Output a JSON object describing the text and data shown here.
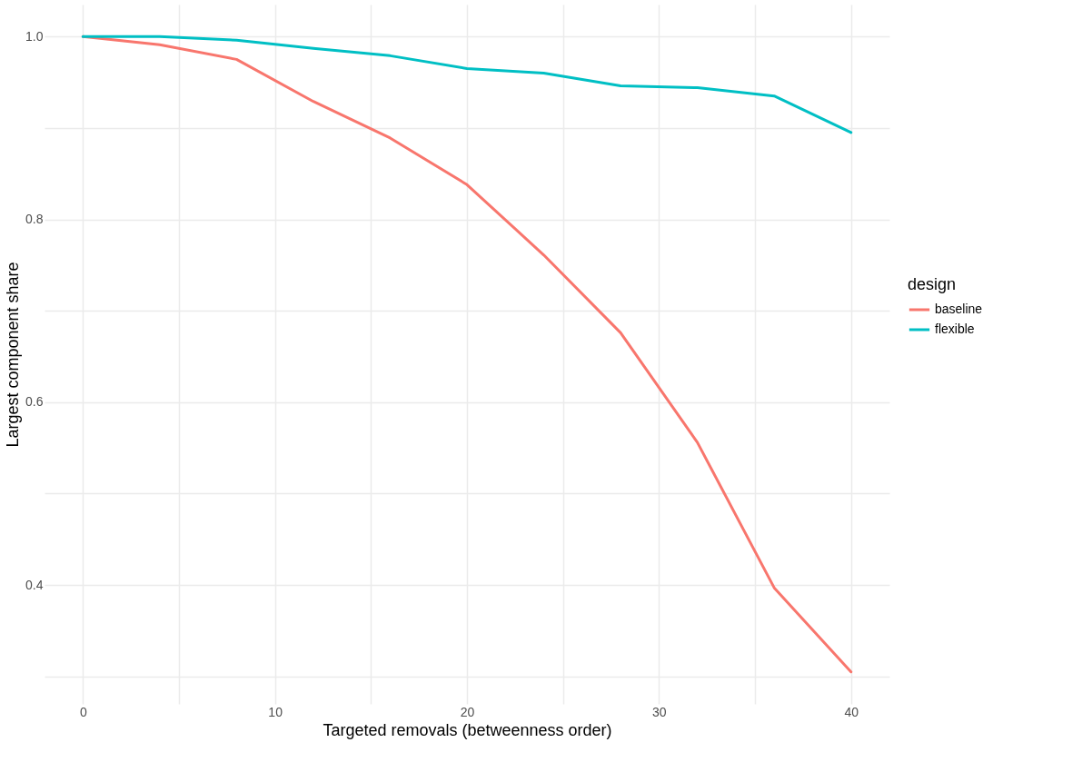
{
  "chart_data": {
    "type": "line",
    "xlabel": "Targeted removals (betweenness order)",
    "ylabel": "Largest component share",
    "legend_title": "design",
    "legend": "right",
    "grid": true,
    "line_style": "solid",
    "marker": "none",
    "x": [
      0,
      4,
      8,
      12,
      16,
      20,
      24,
      28,
      32,
      36,
      40
    ],
    "series": [
      {
        "name": "baseline",
        "color": "#f8766d",
        "values": [
          1.0,
          0.991,
          0.975,
          0.929,
          0.889,
          0.838,
          0.761,
          0.676,
          0.556,
          0.397,
          0.305
        ]
      },
      {
        "name": "flexible",
        "color": "#00bfc4",
        "values": [
          1.0,
          1.0,
          0.996,
          0.987,
          0.979,
          0.965,
          0.96,
          0.946,
          0.944,
          0.935,
          0.895
        ]
      }
    ],
    "xlim": [
      -2,
      42
    ],
    "xticks": [
      0,
      {
        "value": 5,
        "label": null
      },
      10,
      {
        "value": 15,
        "label": null
      },
      20,
      {
        "value": 25,
        "label": null
      },
      30,
      {
        "value": 35,
        "label": null
      },
      40
    ],
    "ylim": [
      0.27,
      1.035
    ],
    "yticks": [
      {
        "value": 0.3,
        "label": null
      },
      {
        "value": 0.4,
        "label": "0.4"
      },
      {
        "value": 0.5,
        "label": null
      },
      {
        "value": 0.6,
        "label": "0.6"
      },
      {
        "value": 0.7,
        "label": null
      },
      {
        "value": 0.8,
        "label": "0.8"
      },
      {
        "value": 0.9,
        "label": null
      },
      {
        "value": 1.0,
        "label": "1.0"
      }
    ]
  }
}
